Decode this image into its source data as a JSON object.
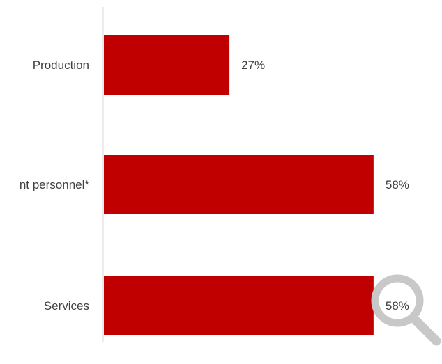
{
  "chart_data": {
    "type": "bar",
    "orientation": "horizontal",
    "categories": [
      "Production",
      "...nt personnel*",
      "Services"
    ],
    "values": [
      27,
      58,
      58
    ],
    "value_labels": [
      "27%",
      "58%",
      "58%"
    ],
    "unit": "%",
    "bar_color": "#c00000",
    "axis_color": "#d9d9d9",
    "xlim": [
      0,
      100
    ],
    "grid": false,
    "title": "",
    "xlabel": "",
    "ylabel": ""
  },
  "overlay": {
    "icon": "magnifier-icon",
    "color": "#c8c8c8"
  }
}
